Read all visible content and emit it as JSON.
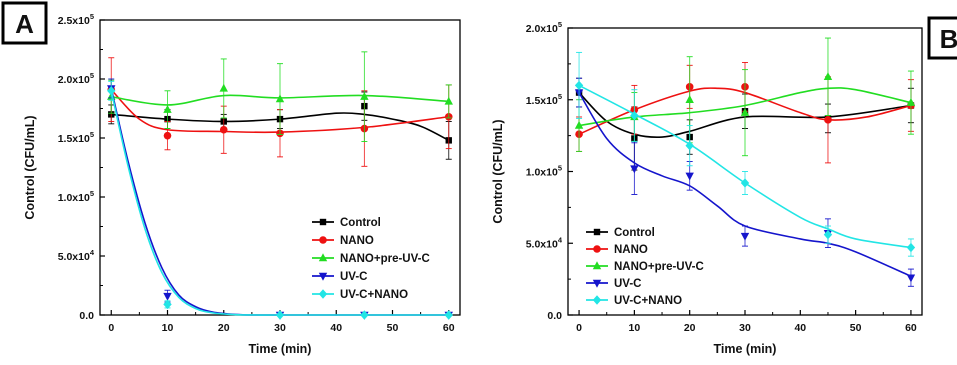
{
  "figure": {
    "panel_labels": [
      "A",
      "B"
    ]
  },
  "chart_data": [
    {
      "type": "line",
      "panel": "A",
      "xlabel": "Time (min)",
      "ylabel": "Control (CFU/mL)",
      "xlim": [
        -2,
        62
      ],
      "ylim": [
        0,
        250000
      ],
      "x_ticks": [
        0,
        10,
        20,
        30,
        40,
        50,
        60
      ],
      "y_ticks": [
        {
          "value": 0,
          "label": "0.0"
        },
        {
          "value": 50000,
          "label": "5.0x10",
          "exp": "4"
        },
        {
          "value": 100000,
          "label": "1.0x10",
          "exp": "5"
        },
        {
          "value": 150000,
          "label": "1.5x10",
          "exp": "5"
        },
        {
          "value": 200000,
          "label": "2.0x10",
          "exp": "5"
        },
        {
          "value": 250000,
          "label": "2.5x10",
          "exp": "5"
        }
      ],
      "grid": false,
      "legend": "bottom-right",
      "series": [
        {
          "name": "Control",
          "color": "#000000",
          "marker": "square",
          "x": [
            0,
            10,
            20,
            30,
            45,
            60
          ],
          "y": [
            170000,
            166000,
            164000,
            166000,
            177000,
            148000
          ],
          "err": [
            8000,
            8000,
            6000,
            8000,
            12000,
            16000
          ],
          "curve": [
            [
              0,
              170000
            ],
            [
              10,
              166000
            ],
            [
              20,
              164000
            ],
            [
              30,
              166000
            ],
            [
              40,
              171000
            ],
            [
              45,
              170000
            ],
            [
              50,
              166000
            ],
            [
              55,
              160000
            ],
            [
              60,
              148000
            ]
          ]
        },
        {
          "name": "NANO",
          "color": "#ee1111",
          "marker": "circle",
          "x": [
            0,
            10,
            20,
            30,
            45,
            60
          ],
          "y": [
            191000,
            152000,
            157000,
            154000,
            158000,
            168000
          ],
          "err": [
            27000,
            12000,
            20000,
            20000,
            32000,
            27000
          ],
          "curve": [
            [
              0,
              191000
            ],
            [
              5,
              166000
            ],
            [
              10,
              157000
            ],
            [
              20,
              155500
            ],
            [
              30,
              155000
            ],
            [
              45,
              159000
            ],
            [
              60,
              168000
            ]
          ]
        },
        {
          "name": "NANO+pre-UV-C",
          "color": "#22dd22",
          "marker": "triangle-up",
          "x": [
            0,
            10,
            20,
            30,
            45,
            60
          ],
          "y": [
            185000,
            174000,
            192000,
            183000,
            185000,
            181000
          ],
          "err": [
            14000,
            16000,
            25000,
            30000,
            38000,
            14000
          ],
          "curve": [
            [
              0,
              185000
            ],
            [
              10,
              178000
            ],
            [
              20,
              186000
            ],
            [
              30,
              184000
            ],
            [
              45,
              186000
            ],
            [
              60,
              181000
            ]
          ]
        },
        {
          "name": "UV-C",
          "color": "#1515cc",
          "marker": "triangle-down",
          "x": [
            0,
            10,
            30,
            45,
            60
          ],
          "y": [
            192000,
            16000,
            0,
            0,
            0
          ],
          "err": [
            8000,
            5000,
            0,
            0,
            0
          ],
          "curve": [
            [
              0,
              192000
            ],
            [
              3,
              130000
            ],
            [
              6,
              78000
            ],
            [
              9,
              40000
            ],
            [
              12,
              17000
            ],
            [
              15,
              7000
            ],
            [
              18,
              2500
            ],
            [
              22,
              500
            ],
            [
              26,
              0
            ],
            [
              30,
              0
            ],
            [
              60,
              0
            ]
          ]
        },
        {
          "name": "UV-C+NANO",
          "color": "#22e5e5",
          "marker": "diamond",
          "x": [
            0,
            10,
            30,
            45,
            60
          ],
          "y": [
            190000,
            9000,
            0,
            0,
            0
          ],
          "err": [
            8000,
            3000,
            0,
            0,
            0
          ],
          "curve": [
            [
              0,
              190000
            ],
            [
              3,
              126000
            ],
            [
              6,
              73000
            ],
            [
              9,
              36000
            ],
            [
              12,
              15000
            ],
            [
              15,
              5500
            ],
            [
              18,
              1800
            ],
            [
              22,
              300
            ],
            [
              26,
              0
            ],
            [
              30,
              0
            ],
            [
              60,
              0
            ]
          ]
        }
      ]
    },
    {
      "type": "line",
      "panel": "B",
      "xlabel": "Time (min)",
      "ylabel": "Control (CFU/mL)",
      "xlim": [
        -2,
        62
      ],
      "ylim": [
        0,
        200000
      ],
      "x_ticks": [
        0,
        10,
        20,
        30,
        40,
        50,
        60
      ],
      "y_ticks": [
        {
          "value": 0,
          "label": "0.0"
        },
        {
          "value": 50000,
          "label": "5.0x10",
          "exp": "4"
        },
        {
          "value": 100000,
          "label": "1.0x10",
          "exp": "5"
        },
        {
          "value": 150000,
          "label": "1.5x10",
          "exp": "5"
        },
        {
          "value": 200000,
          "label": "2.0x10",
          "exp": "5"
        }
      ],
      "grid": false,
      "legend": "bottom-left",
      "series": [
        {
          "name": "Control",
          "color": "#000000",
          "marker": "square",
          "x": [
            0,
            10,
            20,
            30,
            45,
            60
          ],
          "y": [
            155000,
            123000,
            124000,
            142000,
            137000,
            146000
          ],
          "err": [
            10000,
            22000,
            12000,
            12000,
            10000,
            12000
          ],
          "curve": [
            [
              0,
              155000
            ],
            [
              5,
              135000
            ],
            [
              10,
              126000
            ],
            [
              15,
              124000
            ],
            [
              20,
              128000
            ],
            [
              30,
              138000
            ],
            [
              45,
              138000
            ],
            [
              60,
              146000
            ]
          ]
        },
        {
          "name": "NANO",
          "color": "#ee1111",
          "marker": "circle",
          "x": [
            0,
            10,
            20,
            30,
            45,
            60
          ],
          "y": [
            126000,
            143000,
            159000,
            159000,
            136000,
            146000
          ],
          "err": [
            12000,
            17000,
            15000,
            17000,
            30000,
            18000
          ],
          "curve": [
            [
              0,
              126000
            ],
            [
              10,
              143000
            ],
            [
              20,
              156000
            ],
            [
              25,
              158000
            ],
            [
              30,
              155000
            ],
            [
              40,
              141000
            ],
            [
              45,
              136000
            ],
            [
              52,
              138000
            ],
            [
              60,
              146000
            ]
          ]
        },
        {
          "name": "NANO+pre-UV-C",
          "color": "#22dd22",
          "marker": "triangle-up",
          "x": [
            0,
            10,
            20,
            30,
            45,
            60
          ],
          "y": [
            132000,
            138000,
            150000,
            141000,
            166000,
            148000
          ],
          "err": [
            18000,
            17000,
            30000,
            30000,
            27000,
            22000
          ],
          "curve": [
            [
              0,
              132000
            ],
            [
              10,
              138000
            ],
            [
              20,
              141000
            ],
            [
              30,
              146000
            ],
            [
              40,
              155000
            ],
            [
              45,
              158000
            ],
            [
              50,
              157000
            ],
            [
              60,
              148000
            ]
          ]
        },
        {
          "name": "UV-C",
          "color": "#1515cc",
          "marker": "triangle-down",
          "x": [
            0,
            10,
            20,
            30,
            45,
            60
          ],
          "y": [
            155000,
            102000,
            97000,
            55000,
            57000,
            26000
          ],
          "err": [
            10000,
            18000,
            10000,
            7000,
            10000,
            6000
          ],
          "curve": [
            [
              0,
              155000
            ],
            [
              5,
              123000
            ],
            [
              10,
              106000
            ],
            [
              15,
              97000
            ],
            [
              20,
              90000
            ],
            [
              25,
              76000
            ],
            [
              30,
              62000
            ],
            [
              40,
              53000
            ],
            [
              45,
              50000
            ],
            [
              50,
              44000
            ],
            [
              60,
              27000
            ]
          ]
        },
        {
          "name": "UV-C+NANO",
          "color": "#22e5e5",
          "marker": "diamond",
          "x": [
            0,
            10,
            20,
            30,
            45,
            60
          ],
          "y": [
            160000,
            139000,
            118000,
            92000,
            56000,
            47000
          ],
          "err": [
            23000,
            18000,
            14000,
            8000,
            6000,
            6000
          ],
          "curve": [
            [
              0,
              160000
            ],
            [
              10,
              140000
            ],
            [
              20,
              119000
            ],
            [
              30,
              92000
            ],
            [
              40,
              68000
            ],
            [
              45,
              60000
            ],
            [
              50,
              53000
            ],
            [
              60,
              47000
            ]
          ]
        }
      ]
    }
  ]
}
